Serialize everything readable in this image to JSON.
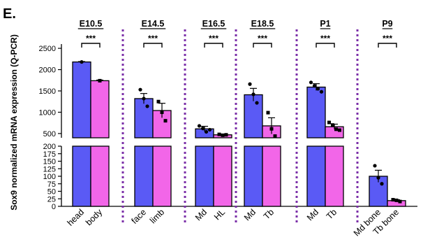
{
  "panel_label": "E.",
  "chart_data": {
    "type": "bar",
    "ylabel": "Sox9 normalized mRNA expression (Q-PCR)",
    "y_axis": "broken",
    "y_segments": [
      {
        "ylim": [
          0,
          200
        ],
        "ticks": [
          0,
          25,
          50,
          75,
          100,
          125,
          150,
          175,
          200
        ]
      },
      {
        "ylim": [
          400,
          2600
        ],
        "ticks": [
          500,
          1000,
          1500,
          2000,
          2500
        ]
      }
    ],
    "colors": {
      "first_bar": "#5a5af5",
      "second_bar": "#f266e8",
      "separator": "#7b2fa8"
    },
    "groups": [
      {
        "label": "E10.5",
        "significance": "***",
        "bars": [
          {
            "category": "head",
            "value": 2180,
            "sem": 10,
            "points": [
              2180
            ]
          },
          {
            "category": "body",
            "value": 1740,
            "sem": 15,
            "points": [
              1740
            ]
          }
        ]
      },
      {
        "label": "E14.5",
        "significance": "***",
        "bars": [
          {
            "category": "face",
            "value": 1320,
            "sem": 120,
            "points": [
              1530,
              1320,
              1140
            ]
          },
          {
            "category": "limb",
            "value": 1040,
            "sem": 170,
            "points": [
              1250,
              1000,
              800
            ]
          }
        ]
      },
      {
        "label": "E16.5",
        "significance": "***",
        "bars": [
          {
            "category": "Md",
            "value": 610,
            "sem": 60,
            "points": [
              680,
              620,
              540,
              590
            ]
          },
          {
            "category": "HL",
            "value": 470,
            "sem": 15,
            "points": [
              480,
              460,
              470
            ]
          }
        ]
      },
      {
        "label": "E18.5",
        "significance": "***",
        "bars": [
          {
            "category": "Md",
            "value": 1410,
            "sem": 150,
            "points": [
              1660,
              1420,
              1220
            ]
          },
          {
            "category": "Tb",
            "value": 680,
            "sem": 190,
            "points": [
              990,
              610,
              440
            ]
          }
        ]
      },
      {
        "label": "P1",
        "significance": "***",
        "bars": [
          {
            "category": "Md",
            "value": 1590,
            "sem": 80,
            "points": [
              1700,
              1620,
              1550,
              1480
            ]
          },
          {
            "category": "Tb",
            "value": 660,
            "sem": 60,
            "points": [
              760,
              700,
              600,
              580
            ]
          }
        ]
      },
      {
        "label": "P9",
        "significance": "***",
        "bars": [
          {
            "category": "Md bone",
            "value": 100,
            "sem": 20,
            "points": [
              135,
              95,
              75
            ]
          },
          {
            "category": "Tb bone",
            "value": 19,
            "sem": 3,
            "points": [
              22,
              20,
              16
            ]
          }
        ]
      }
    ]
  }
}
